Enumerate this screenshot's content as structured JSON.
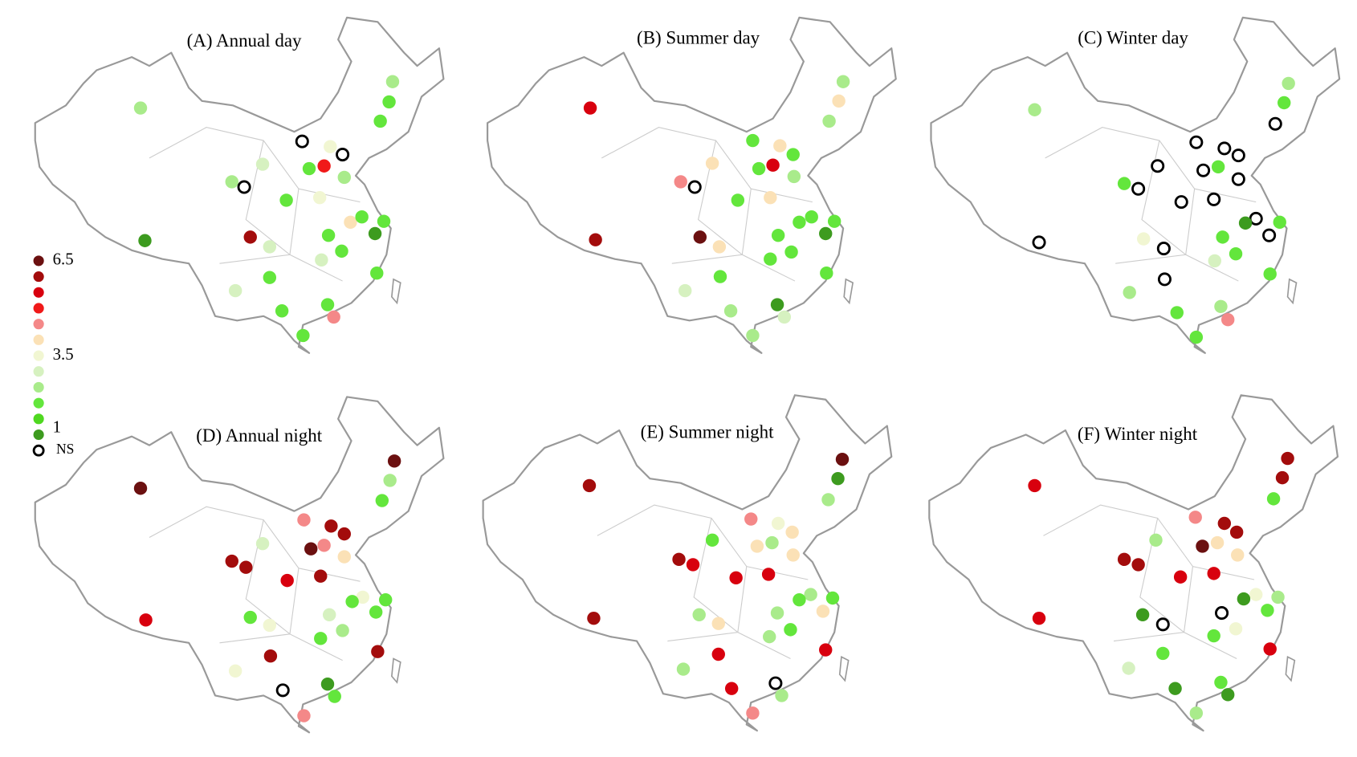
{
  "panels": [
    {
      "title": "(A) Annual day"
    },
    {
      "title": "(B) Summer day"
    },
    {
      "title": "(C) Winter day"
    },
    {
      "title": "(D) Annual night"
    },
    {
      "title": "(E) Summer night"
    },
    {
      "title": "(F) Winter night"
    }
  ],
  "legend": {
    "items": [
      {
        "color": "#6b1010",
        "label": "6.5"
      },
      {
        "color": "#a30c0c"
      },
      {
        "color": "#d8000e"
      },
      {
        "color": "#f01919"
      },
      {
        "color": "#f48888"
      },
      {
        "color": "#fbe1b6"
      },
      {
        "color": "#f1f6d2",
        "label": "3.5"
      },
      {
        "color": "#d6f1c0"
      },
      {
        "color": "#a9eb8b"
      },
      {
        "color": "#63e63c"
      },
      {
        "color": "#4fd820"
      },
      {
        "color": "#3d9b1f",
        "label": "1"
      },
      {
        "ring": "#000000",
        "label": "NS"
      }
    ]
  }
}
